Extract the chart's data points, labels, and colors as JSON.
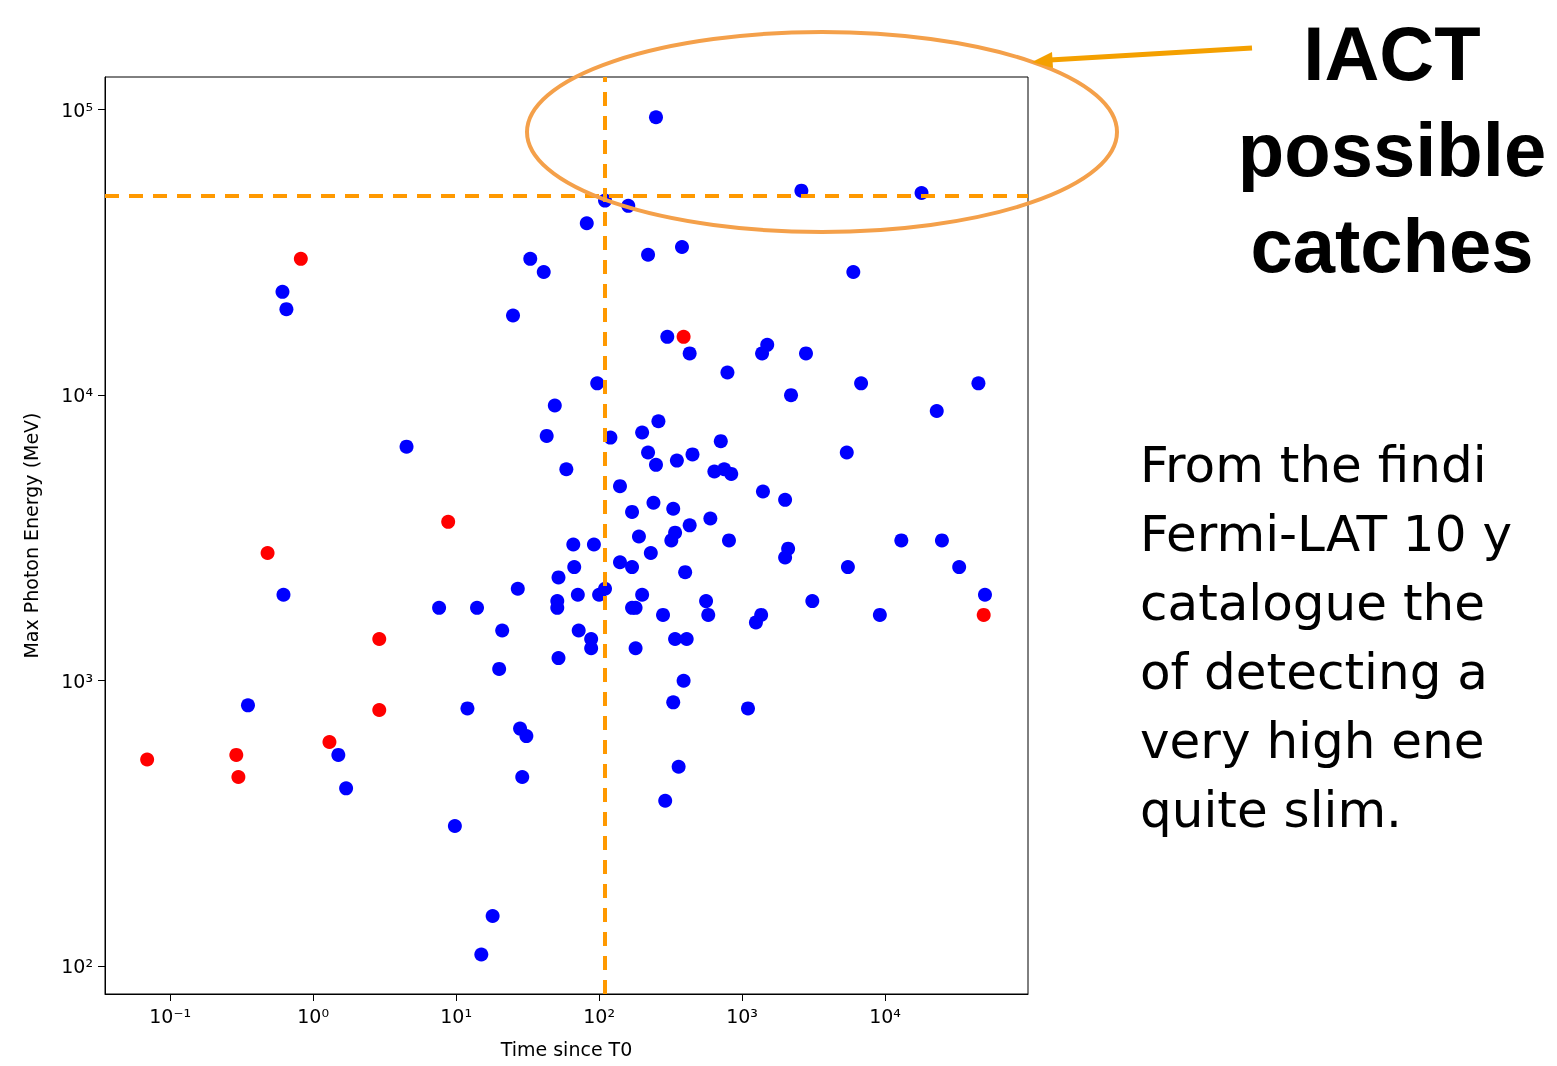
{
  "chart_data": {
    "type": "scatter",
    "xlabel": "Time since T0",
    "ylabel": "Max Photon Energy (MeV)",
    "log": "xy",
    "grid": false,
    "marker": "circle",
    "xlim": [
      0.035,
      100000
    ],
    "ylim": [
      80,
      130000
    ],
    "xticks": [
      {
        "value": 0.1,
        "label": "10⁻¹"
      },
      {
        "value": 1,
        "label": "10⁰"
      },
      {
        "value": 10,
        "label": "10¹"
      },
      {
        "value": 100,
        "label": "10²"
      },
      {
        "value": 1000,
        "label": "10³"
      },
      {
        "value": 10000,
        "label": "10⁴"
      }
    ],
    "yticks": [
      {
        "value": 100,
        "label": "10²"
      },
      {
        "value": 1000,
        "label": "10³"
      },
      {
        "value": 10000,
        "label": "10⁴"
      },
      {
        "value": 100000,
        "label": "10⁵"
      }
    ],
    "series": [
      {
        "color": "#0000ff",
        "x": [
          250,
          2600,
          18000,
          110,
          160,
          82,
          220,
          380,
          33,
          41,
          6000,
          0.61,
          0.65,
          25,
          300,
          430,
          1500,
          1380,
          2800,
          790,
          6800,
          45000,
          97,
          2200,
          23000,
          49,
          260,
          43,
          200,
          120,
          710,
          4.5,
          220,
          450,
          5400,
          250,
          350,
          59,
          640,
          750,
          840,
          140,
          1400,
          2000,
          240,
          330,
          170,
          600,
          430,
          340,
          190,
          320,
          810,
          13000,
          25000,
          92,
          66,
          230,
          2100,
          2000,
          140,
          170,
          67,
          400,
          33000,
          5500,
          52,
          110,
          27,
          50000,
          0.62,
          71,
          100,
          200,
          51,
          51,
          3100,
          560,
          7.6,
          170,
          180,
          14,
          1360,
          580,
          280,
          9200,
          1250,
          21,
          72,
          88,
          340,
          88,
          410,
          180,
          52,
          20,
          390,
          0.35,
          12,
          1100,
          330,
          28,
          31,
          1.5,
          1.7,
          360,
          29,
          290,
          9.8,
          18,
          15
        ],
        "values": [
          94000,
          52000,
          51000,
          48000,
          46000,
          40000,
          31000,
          33000,
          30000,
          27000,
          27000,
          23000,
          20000,
          19000,
          16000,
          14000,
          15000,
          14000,
          14000,
          12000,
          11000,
          11000,
          11000,
          10000,
          8800,
          9200,
          8100,
          7200,
          7400,
          7100,
          6900,
          6600,
          6300,
          6200,
          6300,
          5700,
          5900,
          5500,
          5400,
          5500,
          5300,
          4800,
          4600,
          4300,
          4200,
          4000,
          3900,
          3700,
          3500,
          3300,
          3200,
          3100,
          3100,
          3100,
          3100,
          3000,
          3000,
          2800,
          2900,
          2700,
          2600,
          2500,
          2500,
          2400,
          2500,
          2500,
          2300,
          2100,
          2100,
          2000,
          2000,
          2000,
          2000,
          2000,
          1900,
          1800,
          1900,
          1900,
          1800,
          1800,
          1800,
          1800,
          1700,
          1700,
          1700,
          1700,
          1600,
          1500,
          1500,
          1400,
          1400,
          1300,
          1400,
          1300,
          1200,
          1100,
          1000,
          820,
          800,
          800,
          840,
          680,
          640,
          550,
          420,
          500,
          460,
          380,
          310,
          150,
          110
        ]
      },
      {
        "color": "#ff0000",
        "x": [
          0.069,
          0.82,
          390,
          8.8,
          0.48,
          2.9,
          2.9,
          1.3,
          0.29,
          0.3,
          49000
        ],
        "values": [
          530,
          30000,
          16000,
          3600,
          2800,
          1400,
          790,
          610,
          550,
          460,
          1700
        ]
      }
    ],
    "ref_lines": [
      {
        "axis": "x",
        "value": 110,
        "color": "#ff9900",
        "line_style": "dashed"
      },
      {
        "axis": "y",
        "value": 50000,
        "color": "#ff9900",
        "line_style": "dashed"
      }
    ],
    "annotations": [
      "IACT\npossible\ncatches",
      "From the findi\nFermi-LAT 10 y\ncatalogue the\nof detecting a\nvery high ene\nquite slim."
    ]
  }
}
